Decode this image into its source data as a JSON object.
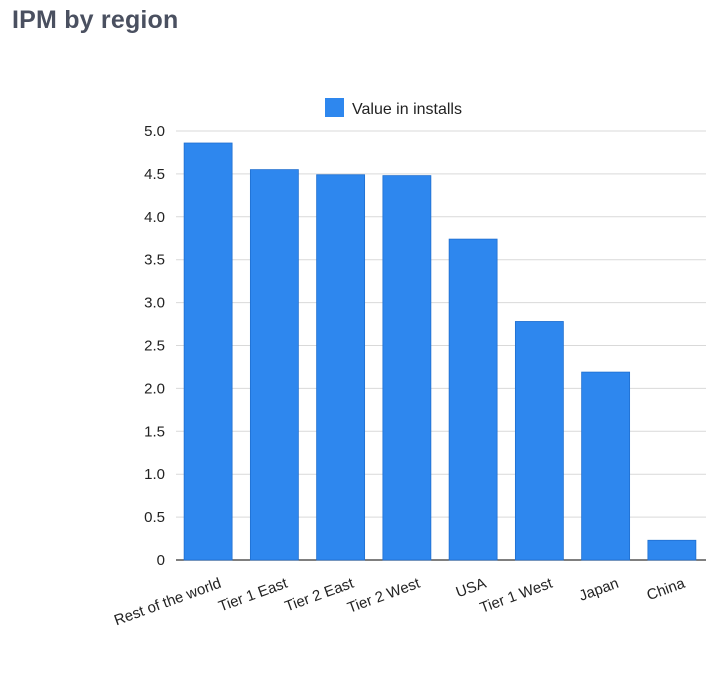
{
  "title": "IPM by region",
  "colors": {
    "bar": "#2e87ee",
    "bar_stroke": "#1f6fd0",
    "grid": "#d9d9d9",
    "title": "#4a5060"
  },
  "chart_data": {
    "type": "bar",
    "categories": [
      "Rest of the world",
      "Tier 1 East",
      "Tier 2 East",
      "Tier 2 West",
      "USA",
      "Tier 1 West",
      "Japan",
      "China"
    ],
    "series": [
      {
        "name": "Value in installs",
        "values": [
          4.86,
          4.55,
          4.49,
          4.48,
          3.74,
          2.78,
          2.19,
          0.23
        ]
      }
    ],
    "ylim": [
      0,
      5
    ],
    "yticks": [
      "0",
      "0.5",
      "1.0",
      "1.5",
      "2.0",
      "2.5",
      "3.0",
      "3.5",
      "4.0",
      "4.5",
      "5.0"
    ],
    "xlabel": "",
    "ylabel": "",
    "legend": "top",
    "grid": true
  }
}
